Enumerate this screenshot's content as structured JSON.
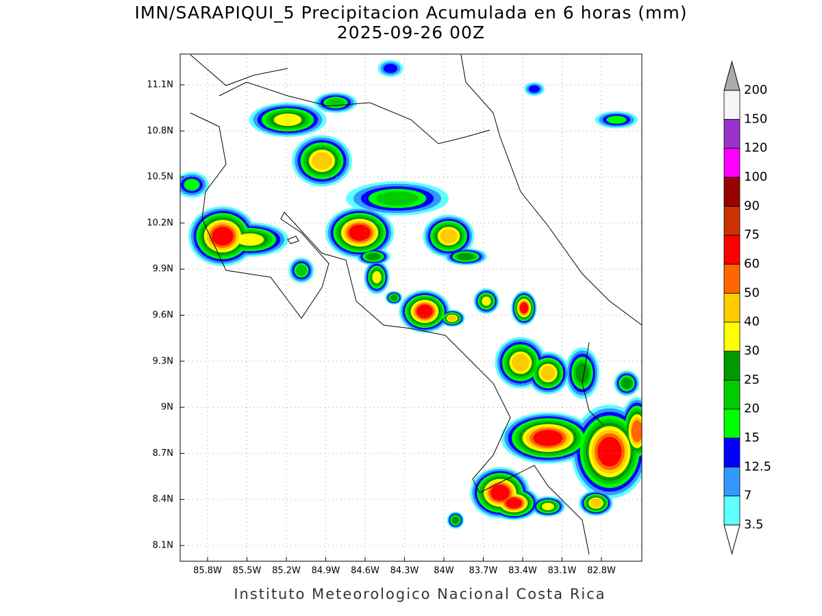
{
  "title": "IMN/SARAPIQUI_5 Precipitacion Acumulada en 6 horas (mm)",
  "subtitle": "2025-09-26 00Z",
  "footer": "Instituto Meteorologico Nacional Costa Rica",
  "map": {
    "xticks": [
      "85.8W",
      "85.5W",
      "85.2W",
      "84.9W",
      "84.6W",
      "84.3W",
      "84W",
      "83.7W",
      "83.4W",
      "83.1W",
      "82.8W"
    ],
    "yticks": [
      "11.1N",
      "10.8N",
      "10.5N",
      "10.2N",
      "9.9N",
      "9.6N",
      "9.3N",
      "9N",
      "8.7N",
      "8.4N",
      "8.1N"
    ],
    "grid": true
  },
  "legend": {
    "levels": [
      3.5,
      7,
      12.5,
      15,
      20,
      25,
      30,
      40,
      50,
      60,
      75,
      90,
      100,
      120,
      150,
      200
    ],
    "colors": [
      "#5effff",
      "#3399ff",
      "#0000ff",
      "#00ff00",
      "#00cc00",
      "#009900",
      "#ffff00",
      "#ffcc00",
      "#ff6600",
      "#ff0000",
      "#cc3300",
      "#990000",
      "#ff00ff",
      "#9933cc",
      "#f5f5f5"
    ],
    "over_color": "#aaaaaa",
    "under_color": "#ffffff"
  }
}
